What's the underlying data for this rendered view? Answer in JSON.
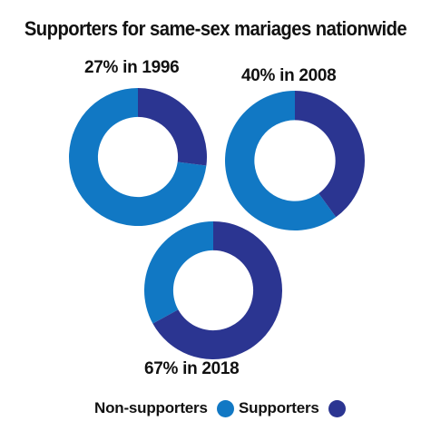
{
  "title": "Supporters for same-sex mariages nationwide",
  "colors": {
    "non_supporters": "#1178c4",
    "supporters": "#2b3591",
    "text": "#111111",
    "background": "#ffffff"
  },
  "legend": {
    "non_supporters_label": "Non-supporters",
    "supporters_label": "Supporters"
  },
  "chart_data": {
    "type": "pie",
    "variant": "donut",
    "title": "Supporters for same-sex mariages nationwide",
    "legend_placement": "bottom",
    "series_names": [
      "Non-supporters",
      "Supporters"
    ],
    "charts": [
      {
        "label": "27% in 1996",
        "year": 1996,
        "supporters": 27,
        "non_supporters": 73
      },
      {
        "label": "40% in 2008",
        "year": 2008,
        "supporters": 40,
        "non_supporters": 60
      },
      {
        "label": "67% in 2018",
        "year": 2018,
        "supporters": 67,
        "non_supporters": 33
      }
    ]
  }
}
